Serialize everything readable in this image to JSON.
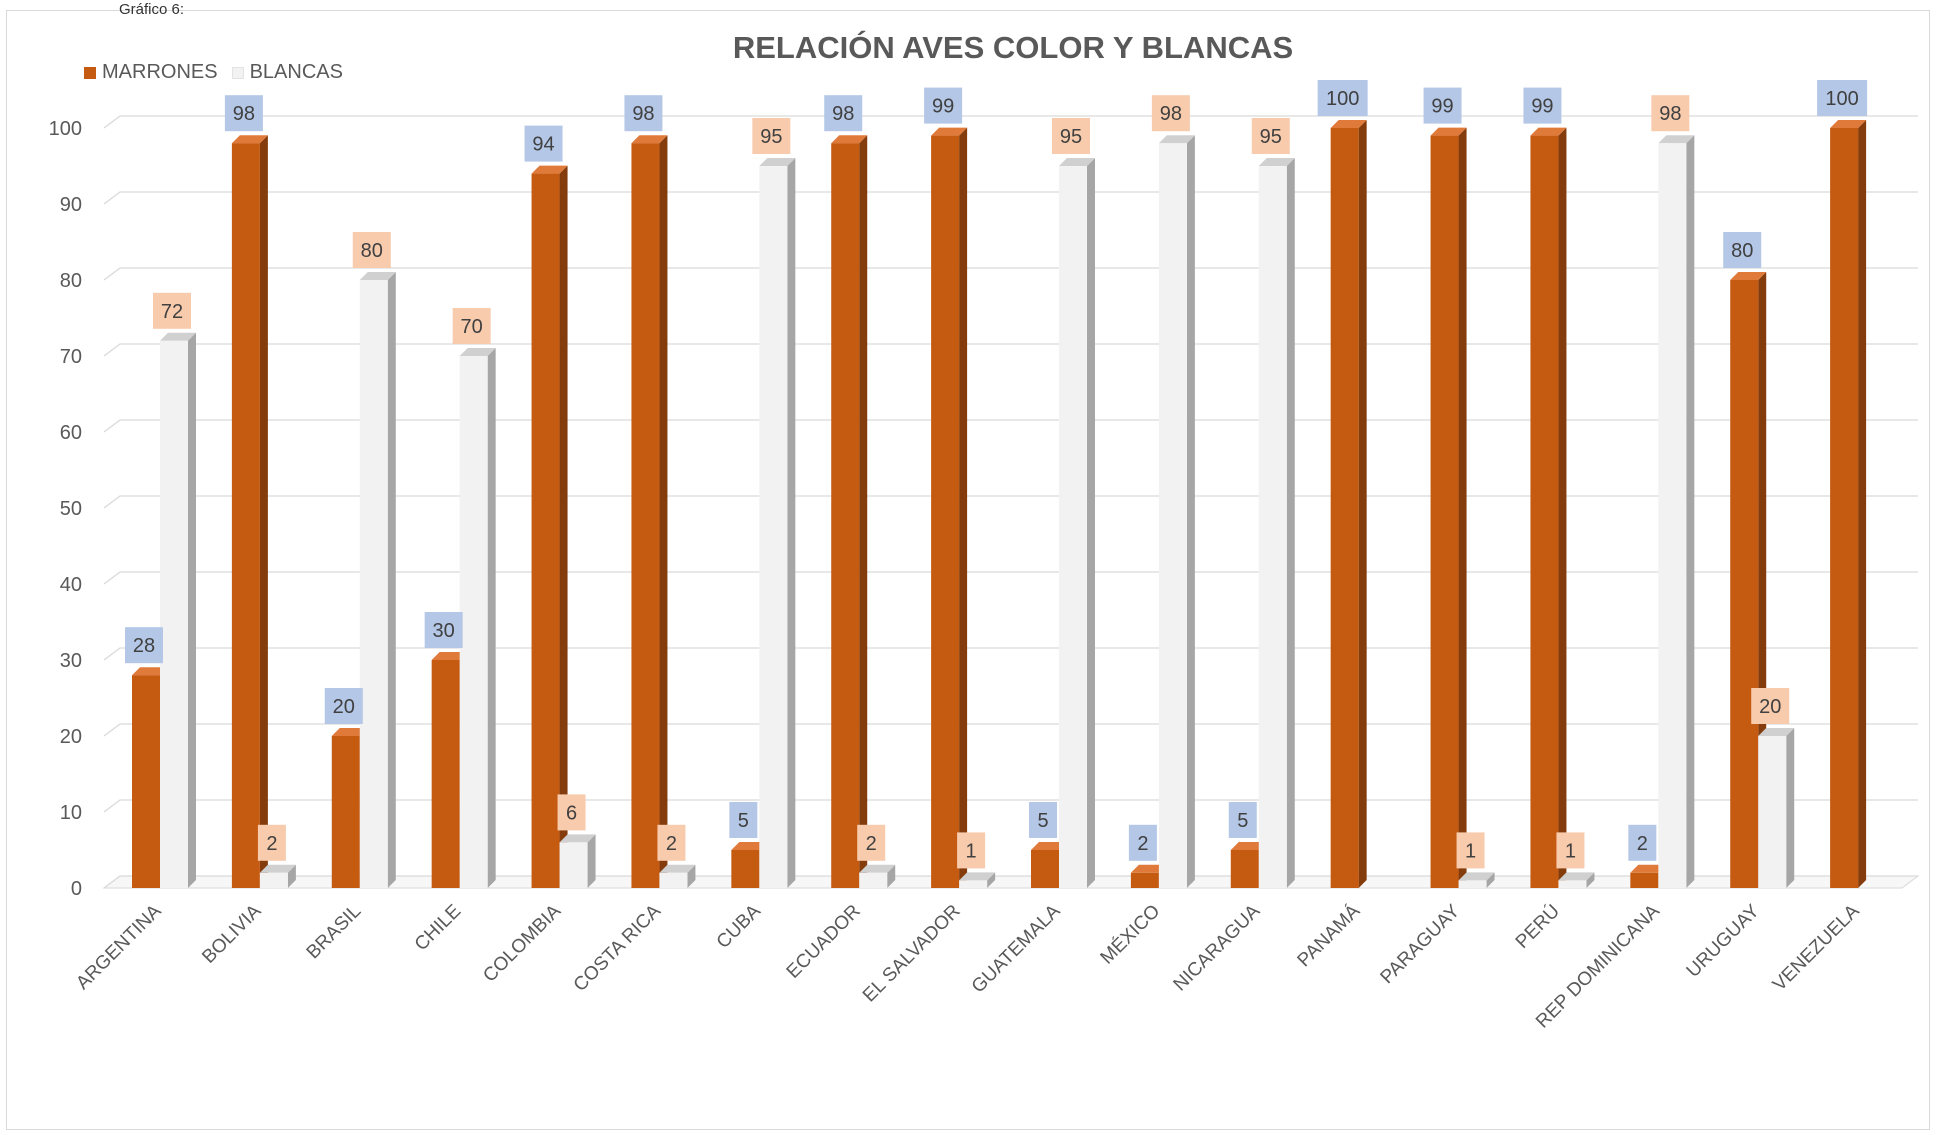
{
  "caption": "Gráfico 6:",
  "chart_data": {
    "type": "bar",
    "title": "RELACIÓN AVES COLOR Y BLANCAS",
    "categories": [
      "ARGENTINA",
      "BOLIVIA",
      "BRASIL",
      "CHILE",
      "COLOMBIA",
      "COSTA RICA",
      "CUBA",
      "ECUADOR",
      "EL SALVADOR",
      "GUATEMALA",
      "MÉXICO",
      "NICARAGUA",
      "PANAMÁ",
      "PARAGUAY",
      "PERÚ",
      "REP DOMINICANA",
      "URUGUAY",
      "VENEZUELA"
    ],
    "series": [
      {
        "name": "MARRONES",
        "color": "#c55a11",
        "label_bg": "#b4c7e7",
        "values": [
          28,
          98,
          20,
          30,
          94,
          98,
          5,
          98,
          99,
          5,
          2,
          5,
          100,
          99,
          99,
          2,
          80,
          100
        ],
        "labels": [
          "28",
          "98",
          "20",
          "30",
          "94",
          "98",
          "5",
          "98",
          "99",
          "5",
          "2",
          "5",
          "100",
          "99",
          "99",
          "2",
          "80",
          "100"
        ]
      },
      {
        "name": "BLANCAS",
        "color": "#f2f2f2",
        "label_bg": "#f8cbad",
        "values": [
          72,
          2,
          80,
          70,
          6,
          2,
          95,
          2,
          1,
          95,
          98,
          95,
          0,
          1,
          1,
          98,
          20,
          0
        ],
        "labels": [
          "72",
          "2",
          "80",
          "70",
          "6",
          "2",
          "95",
          "2",
          "1",
          "95",
          "98",
          "95",
          "",
          "1",
          "1",
          "98",
          "20",
          ""
        ]
      }
    ],
    "ylim": [
      0,
      100
    ],
    "yticks": [
      0,
      10,
      20,
      30,
      40,
      50,
      60,
      70,
      80,
      90,
      100
    ],
    "grid": true,
    "legend": "top-left",
    "xlabel": "",
    "ylabel": ""
  }
}
